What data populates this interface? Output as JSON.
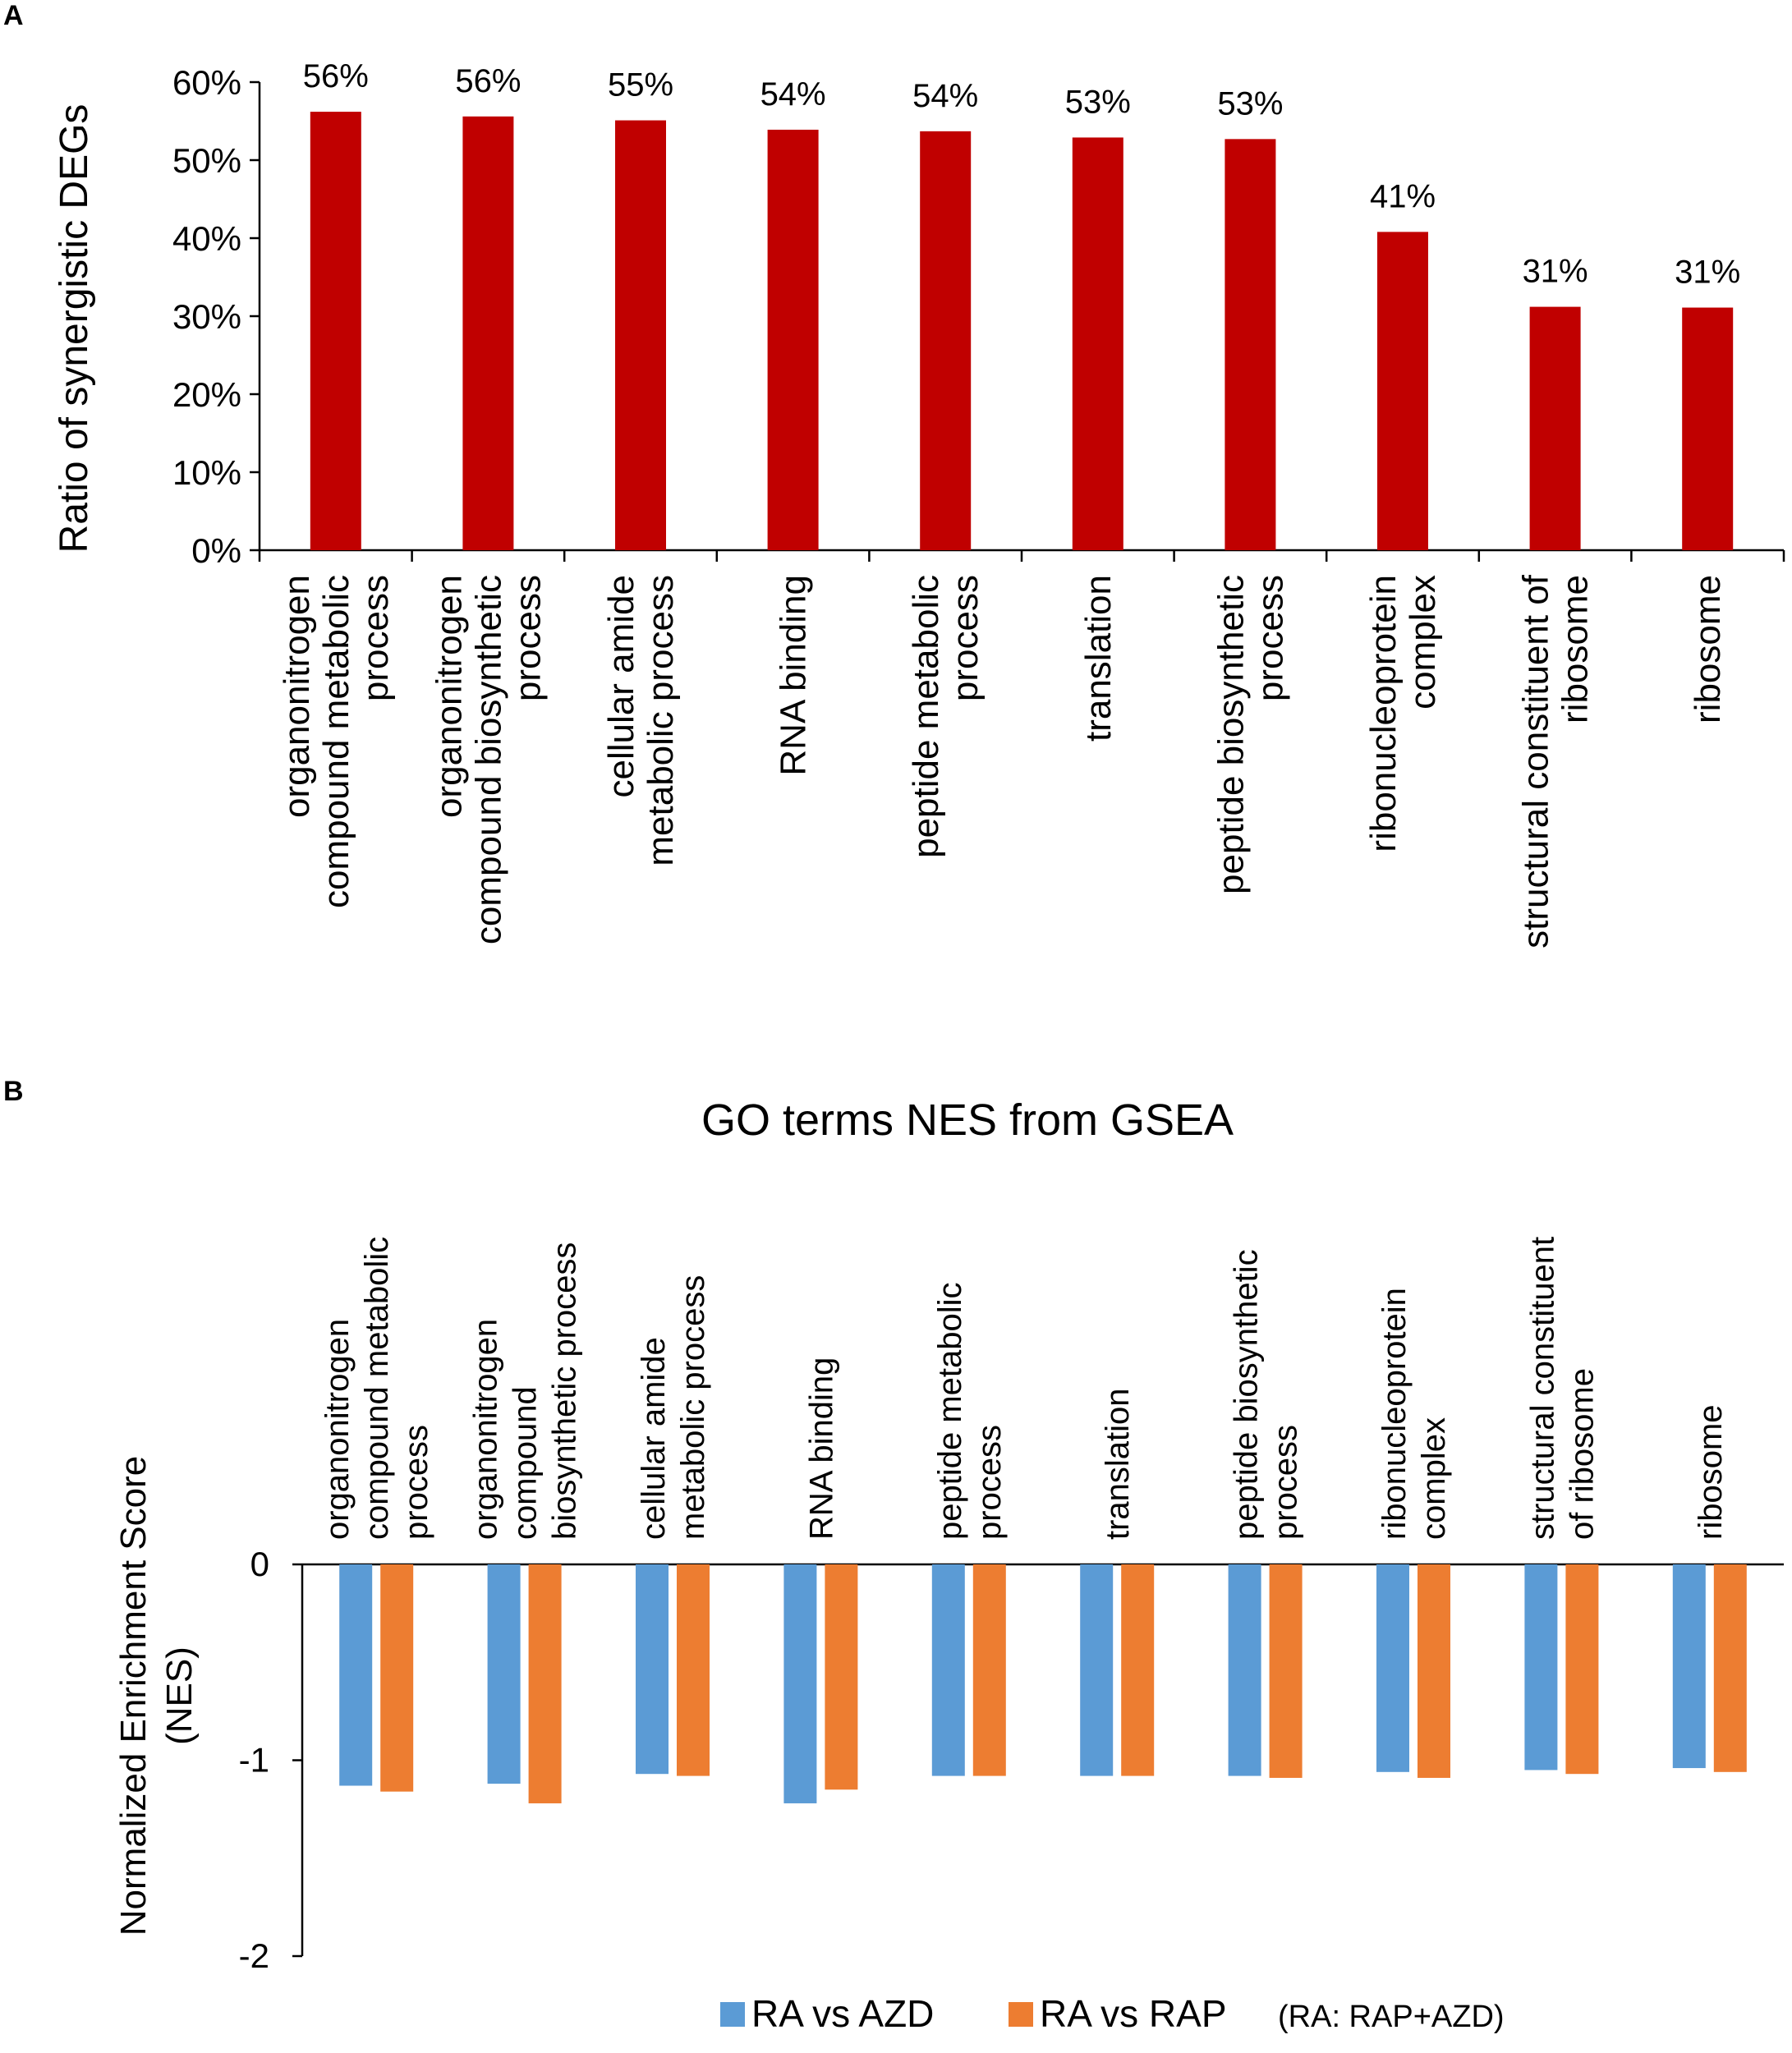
{
  "chart_data": [
    {
      "panel": "A",
      "type": "bar",
      "categories": [
        [
          "organonitrogen",
          "compound metabolic",
          "process"
        ],
        [
          "organonitrogen",
          "compound biosynthetic",
          "process"
        ],
        [
          "cellular amide",
          "metabolic process"
        ],
        [
          "RNA binding"
        ],
        [
          "peptide metabolic",
          "process"
        ],
        [
          "translation"
        ],
        [
          "peptide biosynthetic",
          "process"
        ],
        [
          "ribonucleoprotein",
          "complex"
        ],
        [
          "structural constituent of",
          "ribosome"
        ],
        [
          "ribosome"
        ]
      ],
      "values": [
        56.2,
        55.6,
        55.1,
        53.9,
        53.7,
        52.9,
        52.7,
        40.8,
        31.2,
        31.1
      ],
      "data_labels": [
        "56%",
        "56%",
        "55%",
        "54%",
        "54%",
        "53%",
        "53%",
        "41%",
        "31%",
        "31%"
      ],
      "ylabel": "Ratio of synergistic DEGs",
      "ylim": [
        0,
        60
      ],
      "yticks": [
        "0%",
        "10%",
        "20%",
        "30%",
        "40%",
        "50%",
        "60%"
      ],
      "color": "#c00000",
      "grid": false
    },
    {
      "panel": "B",
      "type": "bar",
      "title": "GO terms NES from GSEA",
      "categories": [
        [
          "organonitrogen",
          "compound metabolic",
          "process"
        ],
        [
          "organonitrogen",
          "compound",
          "biosynthetic process"
        ],
        [
          "cellular amide",
          "metabolic process"
        ],
        [
          "RNA binding"
        ],
        [
          "peptide metabolic",
          "process"
        ],
        [
          "translation"
        ],
        [
          "peptide biosynthetic",
          "process"
        ],
        [
          "ribonucleoprotein",
          "complex"
        ],
        [
          "structural constituent",
          "of ribosome"
        ],
        [
          "ribosome"
        ]
      ],
      "series": [
        {
          "name": "RA vs AZD",
          "color": "#5b9bd5",
          "values": [
            -1.13,
            -1.12,
            -1.07,
            -1.22,
            -1.08,
            -1.08,
            -1.08,
            -1.06,
            -1.05,
            -1.04
          ]
        },
        {
          "name": "RA vs RAP",
          "color": "#ed7d31",
          "values": [
            -1.16,
            -1.22,
            -1.08,
            -1.15,
            -1.08,
            -1.08,
            -1.09,
            -1.09,
            -1.07,
            -1.06
          ]
        }
      ],
      "ylabel": [
        "Normalized Enrichment Score",
        "(NES)"
      ],
      "ylim": [
        -2,
        0
      ],
      "yticks": [
        "0",
        "-1",
        "-2"
      ],
      "legend_note": "(RA: RAP+AZD)",
      "legend_position": "bottom",
      "grid": false
    }
  ]
}
